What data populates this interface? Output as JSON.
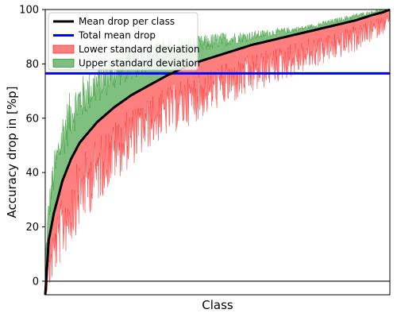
{
  "chart_data": {
    "type": "area",
    "xlabel": "Class",
    "ylabel": "Accuracy drop in [%p]",
    "ylim": [
      -5,
      100
    ],
    "yticks": [
      0,
      20,
      40,
      60,
      80,
      100
    ],
    "x_ticks_shown": false,
    "num_classes": 1000,
    "grid": false,
    "legend_position": "top-left",
    "total_mean_drop": 76.5,
    "zero_reference_line": 0,
    "series": [
      {
        "name": "Mean drop per class",
        "role": "mean-line",
        "color": "#000000",
        "x": [
          0,
          10,
          25,
          50,
          75,
          100,
          150,
          200,
          250,
          300,
          350,
          400,
          450,
          500,
          550,
          600,
          650,
          700,
          750,
          800,
          850,
          900,
          950,
          980,
          1000
        ],
        "values": [
          -5,
          15,
          25,
          37,
          45,
          51,
          58.5,
          64,
          68.5,
          72,
          75.5,
          78.5,
          81,
          83,
          85,
          87,
          88.5,
          90,
          91.5,
          93,
          94.5,
          96,
          98,
          99,
          100
        ]
      },
      {
        "name": "Total mean drop",
        "role": "total-line",
        "color": "#0000ff",
        "values": [
          76.5
        ]
      },
      {
        "name": "Lower standard deviation",
        "role": "lower-band",
        "color": "#ff0000",
        "x": [
          0,
          10,
          25,
          50,
          75,
          100,
          150,
          200,
          250,
          300,
          350,
          400,
          450,
          500,
          550,
          600,
          650,
          700,
          750,
          800,
          850,
          900,
          950,
          980,
          1000
        ],
        "values": [
          -5,
          5,
          13,
          22,
          29,
          35,
          43,
          50,
          55,
          60,
          64,
          67,
          70,
          73,
          75,
          77.5,
          80,
          82,
          84,
          86,
          88,
          90,
          93,
          95,
          97
        ]
      },
      {
        "name": "Upper standard deviation",
        "role": "upper-band",
        "color": "#008000",
        "x": [
          0,
          10,
          25,
          50,
          75,
          100,
          150,
          200,
          250,
          300,
          350,
          400,
          450,
          500,
          550,
          600,
          650,
          700,
          750,
          800,
          850,
          900,
          950,
          980,
          1000
        ],
        "values": [
          5,
          25,
          38,
          52,
          60,
          65,
          71,
          76,
          79,
          81.5,
          83.5,
          85,
          86.5,
          88,
          89,
          90,
          91,
          92,
          93,
          94.5,
          96,
          97.5,
          99,
          100,
          100
        ]
      }
    ]
  }
}
